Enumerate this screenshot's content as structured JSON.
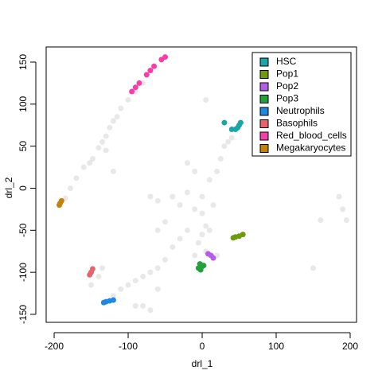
{
  "chart_data": {
    "type": "scatter",
    "xlabel": "drl_1",
    "ylabel": "drl_2",
    "xlim": [
      -210.8,
      208.6
    ],
    "ylim": [
      -159.5,
      168
    ],
    "xticks": [
      -200,
      -100,
      0,
      100,
      200
    ],
    "yticks": [
      -150,
      -100,
      -50,
      0,
      50,
      100,
      150
    ],
    "legend": "top-right",
    "series": [
      {
        "color": "rgba(0,0,0,0.09)",
        "x": [
          -185,
          -178,
          -170,
          -160,
          -152,
          -148,
          -140,
          -135,
          -130,
          -125,
          -120,
          -115,
          -110,
          -100,
          -90,
          -80,
          5,
          -70,
          -60,
          -40,
          -30,
          -20,
          -10,
          0,
          5,
          0,
          -5,
          5,
          -10,
          0,
          10,
          15,
          20,
          25,
          30,
          35,
          40,
          -20,
          -30,
          -40,
          -50,
          -60,
          -70,
          -80,
          -90,
          -100,
          -110,
          -120,
          -80,
          -70,
          -90,
          -60,
          -150,
          -140,
          -135,
          185,
          190,
          195,
          160,
          150,
          -60,
          -50,
          -20,
          -10,
          10,
          20,
          -130,
          -120
        ],
        "y": [
          -12,
          0,
          12,
          25,
          30,
          35,
          48,
          55,
          62,
          72,
          80,
          85,
          95,
          105,
          115,
          125,
          105,
          -10,
          -15,
          -10,
          -20,
          -5,
          -25,
          -30,
          -45,
          -55,
          -65,
          -75,
          -80,
          -10,
          10,
          -20,
          20,
          35,
          50,
          55,
          60,
          -50,
          -60,
          -70,
          -85,
          -95,
          -100,
          -105,
          -110,
          -115,
          -120,
          -128,
          -140,
          -145,
          -140,
          -120,
          -115,
          -105,
          -95,
          -10,
          -25,
          -38,
          -38,
          -95,
          -50,
          -40,
          30,
          20,
          -50,
          -80,
          45,
          20
        ]
      },
      {
        "name": "HSC",
        "color": "#1aa6a8",
        "x": [
          50,
          52,
          48,
          45,
          30,
          40
        ],
        "y": [
          75,
          78,
          72,
          70,
          78,
          70
        ]
      },
      {
        "name": "Pop1",
        "color": "#6e9a0e",
        "x": [
          42,
          45,
          50,
          55
        ],
        "y": [
          -59,
          -58,
          -57,
          -55
        ]
      },
      {
        "name": "Pop2",
        "color": "#b45ee8",
        "x": [
          8,
          12,
          15
        ],
        "y": [
          -78,
          -80,
          -83
        ]
      },
      {
        "name": "Pop3",
        "color": "#22a03c",
        "x": [
          -3,
          0,
          -5,
          -2,
          2
        ],
        "y": [
          -90,
          -93,
          -95,
          -97,
          -92
        ]
      },
      {
        "name": "Neutrophils",
        "color": "#1e88e5",
        "x": [
          -133,
          -130,
          -125,
          -120
        ],
        "y": [
          -136,
          -135,
          -134,
          -133
        ]
      },
      {
        "name": "Basophils",
        "color": "#e8636e",
        "x": [
          -152,
          -150,
          -148
        ],
        "y": [
          -103,
          -100,
          -96
        ]
      },
      {
        "name": "Red_blood_cells",
        "color": "#f43fa8",
        "x": [
          -95,
          -90,
          -85,
          -75,
          -70,
          -65,
          -55,
          -50
        ],
        "y": [
          115,
          120,
          125,
          135,
          140,
          145,
          153,
          156
        ]
      },
      {
        "name": "Megakaryocytes",
        "color": "#c2820c",
        "x": [
          -193,
          -192,
          -190
        ],
        "y": [
          -20,
          -18,
          -15
        ]
      }
    ]
  }
}
